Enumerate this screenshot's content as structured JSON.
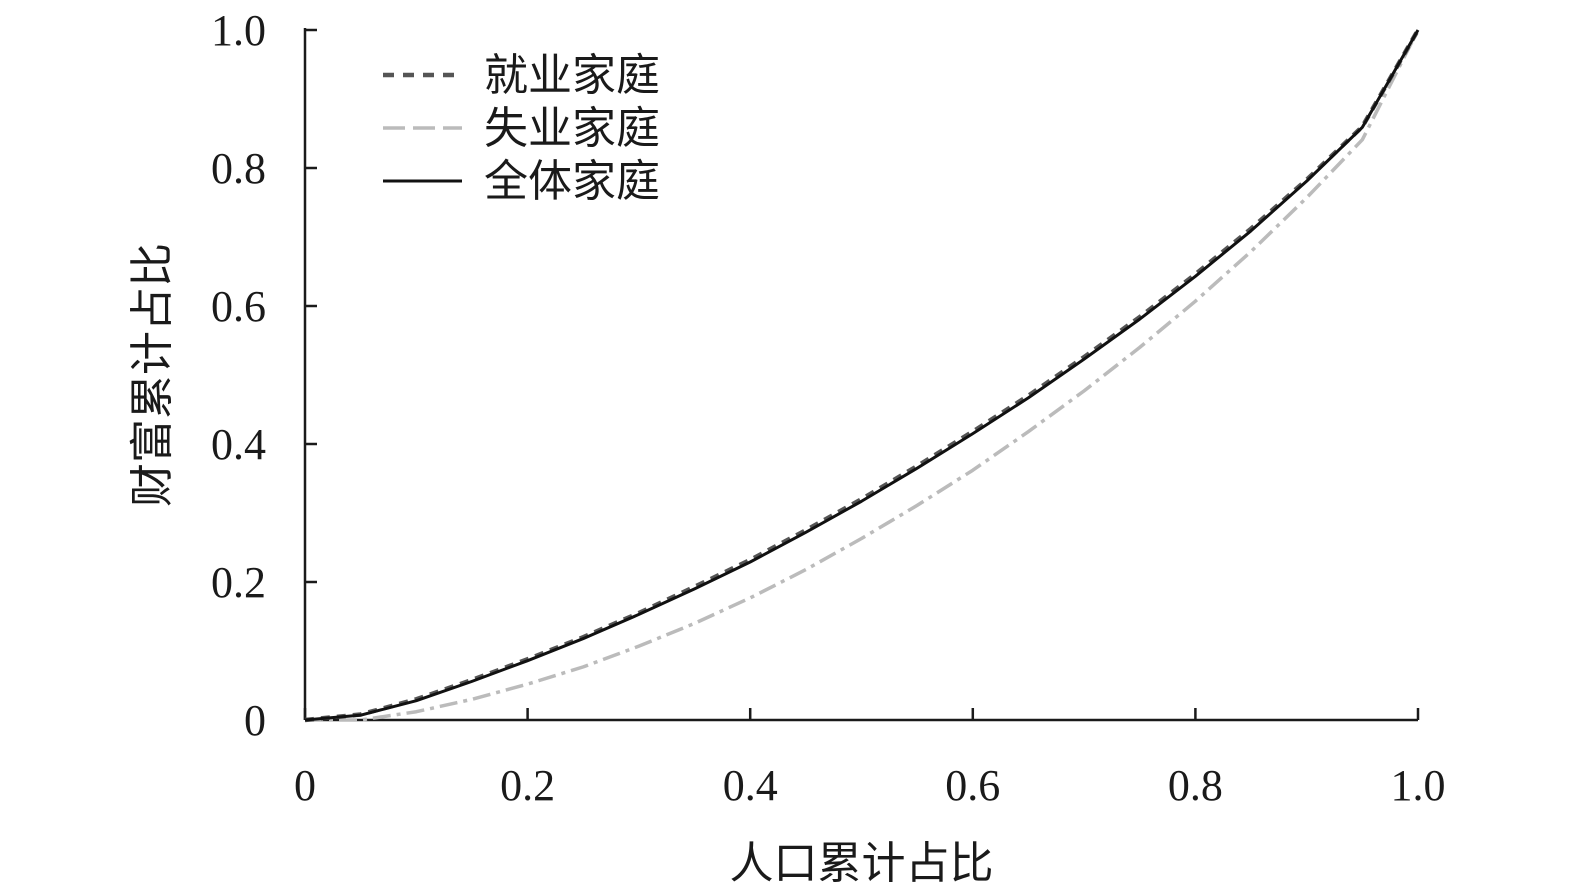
{
  "chart_data": {
    "type": "line",
    "xlabel": "人口累计占比",
    "ylabel": "财富累计占比",
    "xlim": [
      0,
      1
    ],
    "ylim": [
      0,
      1
    ],
    "xticks": [
      {
        "value": 0,
        "label": "0"
      },
      {
        "value": 0.2,
        "label": "0.2"
      },
      {
        "value": 0.4,
        "label": "0.4"
      },
      {
        "value": 0.6,
        "label": "0.6"
      },
      {
        "value": 0.8,
        "label": "0.8"
      },
      {
        "value": 1.0,
        "label": "1.0"
      }
    ],
    "yticks": [
      {
        "value": 0,
        "label": "0"
      },
      {
        "value": 0.2,
        "label": "0.2"
      },
      {
        "value": 0.4,
        "label": "0.4"
      },
      {
        "value": 0.6,
        "label": "0.6"
      },
      {
        "value": 0.8,
        "label": "0.8"
      },
      {
        "value": 1.0,
        "label": "1.0"
      }
    ],
    "grid": false,
    "legend_position": "top-left",
    "x": [
      0,
      0.05,
      0.1,
      0.15,
      0.2,
      0.25,
      0.3,
      0.35,
      0.4,
      0.45,
      0.5,
      0.55,
      0.6,
      0.65,
      0.7,
      0.75,
      0.8,
      0.85,
      0.9,
      0.95,
      1.0
    ],
    "series": [
      {
        "name": "就业家庭",
        "style": "short-dash",
        "color": "#555555",
        "values": [
          0,
          0.008,
          0.03,
          0.058,
          0.088,
          0.12,
          0.155,
          0.193,
          0.232,
          0.275,
          0.32,
          0.368,
          0.418,
          0.47,
          0.526,
          0.584,
          0.646,
          0.712,
          0.783,
          0.86,
          1.0
        ]
      },
      {
        "name": "失业家庭",
        "style": "dash-dot",
        "color": "#bbbbbb",
        "values": [
          0,
          0.0,
          0.012,
          0.03,
          0.052,
          0.077,
          0.107,
          0.14,
          0.177,
          0.218,
          0.263,
          0.311,
          0.362,
          0.418,
          0.477,
          0.54,
          0.607,
          0.679,
          0.757,
          0.841,
          1.0
        ]
      },
      {
        "name": "全体家庭",
        "style": "solid",
        "color": "#111111",
        "values": [
          0,
          0.007,
          0.028,
          0.056,
          0.086,
          0.118,
          0.153,
          0.19,
          0.229,
          0.272,
          0.317,
          0.365,
          0.415,
          0.467,
          0.523,
          0.581,
          0.643,
          0.709,
          0.781,
          0.859,
          1.0
        ]
      }
    ]
  }
}
